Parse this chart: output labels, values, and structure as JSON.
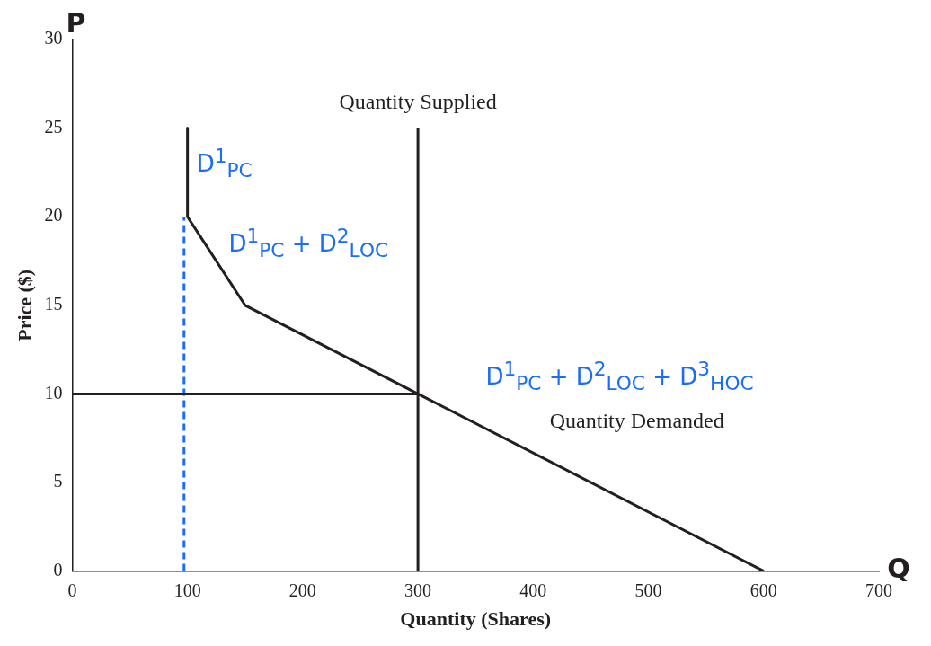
{
  "chart_data": {
    "type": "line",
    "xlabel": "Quantity (Shares)",
    "ylabel": "Price ($)",
    "xlim": [
      0,
      700
    ],
    "xticks": [
      0,
      100,
      200,
      300,
      400,
      500,
      600,
      700
    ],
    "ylim": [
      0,
      30
    ],
    "yticks": [
      0,
      5,
      10,
      15,
      20,
      25,
      30
    ],
    "grid": false,
    "legend": false,
    "marker": "none",
    "series": [
      {
        "x": [
          100,
          100,
          150,
          300,
          600
        ],
        "values": [
          25,
          20,
          15,
          10,
          0
        ],
        "color": "#231f20"
      },
      {
        "x": [
          300,
          300
        ],
        "values": [
          0,
          25
        ],
        "color": "#231f20"
      },
      {
        "x": [
          0,
          300
        ],
        "values": [
          10,
          10
        ],
        "color": "#231f20"
      },
      {
        "x": [
          97,
          97
        ],
        "values": [
          0,
          20
        ],
        "color": "#1a6ef5",
        "line_style": "dashed"
      }
    ],
    "annotations": [
      "P",
      "Q",
      "Quantity Supplied",
      "Quantity Demanded",
      "D$^{1}$$_{PC}$",
      "D$^{1}$$_{PC}$ + D$^{2}$$_{LOC}$",
      "D$^{1}$$_{PC}$ + D$^{2}$$_{LOC}$ + D$^{3}$$_{HOC}$"
    ]
  }
}
